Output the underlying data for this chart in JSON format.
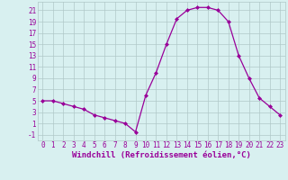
{
  "x": [
    0,
    1,
    2,
    3,
    4,
    5,
    6,
    7,
    8,
    9,
    10,
    11,
    12,
    13,
    14,
    15,
    16,
    17,
    18,
    19,
    20,
    21,
    22,
    23
  ],
  "y": [
    5,
    5,
    4.5,
    4,
    3.5,
    2.5,
    2,
    1.5,
    1,
    -0.5,
    6,
    10,
    15,
    19.5,
    21,
    21.5,
    21.5,
    21,
    19,
    13,
    9,
    5.5,
    4,
    2.5
  ],
  "line_color": "#990099",
  "marker": "D",
  "marker_size": 2,
  "bg_color": "#d8f0f0",
  "grid_color": "#b0c8c8",
  "xlabel": "Windchill (Refroidissement éolien,°C)",
  "xlabel_color": "#990099",
  "ylabel_color": "#990099",
  "yticks": [
    -1,
    1,
    3,
    5,
    7,
    9,
    11,
    13,
    15,
    17,
    19,
    21
  ],
  "xticks": [
    0,
    1,
    2,
    3,
    4,
    5,
    6,
    7,
    8,
    9,
    10,
    11,
    12,
    13,
    14,
    15,
    16,
    17,
    18,
    19,
    20,
    21,
    22,
    23
  ],
  "ylim": [
    -2,
    22.5
  ],
  "xlim": [
    -0.5,
    23.5
  ],
  "tick_label_fontsize": 5.5,
  "xlabel_fontsize": 6.5,
  "linewidth": 0.9
}
